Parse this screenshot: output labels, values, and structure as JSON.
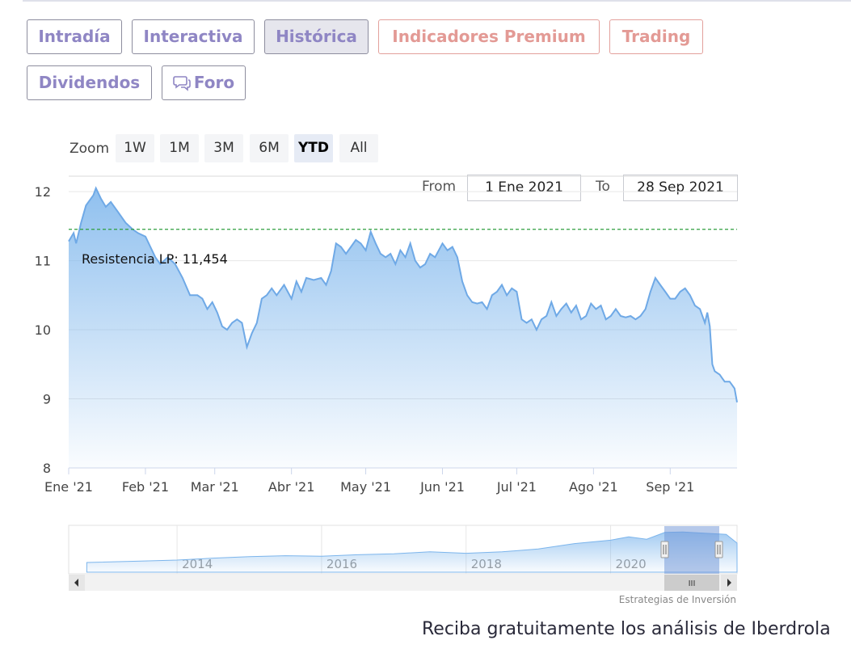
{
  "tabs": [
    {
      "label": "Intradía",
      "active": false,
      "premium": false
    },
    {
      "label": "Interactiva",
      "active": false,
      "premium": false
    },
    {
      "label": "Histórica",
      "active": true,
      "premium": false
    },
    {
      "label": "Indicadores Premium",
      "active": false,
      "premium": true
    },
    {
      "label": "Trading",
      "active": false,
      "premium": true
    },
    {
      "label": "Dividendos",
      "active": false,
      "premium": false
    },
    {
      "label": "Foro",
      "icon": "chat-bubbles-icon",
      "active": false,
      "premium": false
    }
  ],
  "zoom": {
    "label": "Zoom",
    "buttons": [
      "1W",
      "1M",
      "3M",
      "6M",
      "YTD",
      "All"
    ],
    "selected": "YTD"
  },
  "range": {
    "from_label": "From",
    "from_value": "1 Ene 2021",
    "to_label": "To",
    "to_value": "28 Sep 2021"
  },
  "chart_data": {
    "type": "area",
    "x_ticks": [
      "Ene '21",
      "Feb '21",
      "Mar '21",
      "Abr '21",
      "May '21",
      "Jun '21",
      "Jul '21",
      "Ago '21",
      "Sep '21"
    ],
    "y_ticks": [
      8,
      9,
      10,
      11,
      12
    ],
    "ylim": [
      8,
      12.2
    ],
    "xlim": [
      "2021-01-01",
      "2021-09-28"
    ],
    "grid": true,
    "resistance": {
      "label": "Resistencia LP: 11,454",
      "value": 11.454,
      "color": "#2e9e3e"
    },
    "colors": {
      "line": "#7cb5ec",
      "fill_top": "#7cb5ec",
      "fill_bottom": "#ffffff"
    },
    "series": [
      {
        "points": [
          [
            "2021-01-01",
            11.28
          ],
          [
            "2021-01-03",
            11.4
          ],
          [
            "2021-01-04",
            11.25
          ],
          [
            "2021-01-06",
            11.55
          ],
          [
            "2021-01-08",
            11.8
          ],
          [
            "2021-01-11",
            11.95
          ],
          [
            "2021-01-12",
            12.05
          ],
          [
            "2021-01-14",
            11.9
          ],
          [
            "2021-01-16",
            11.78
          ],
          [
            "2021-01-18",
            11.85
          ],
          [
            "2021-01-21",
            11.7
          ],
          [
            "2021-01-24",
            11.55
          ],
          [
            "2021-01-27",
            11.45
          ],
          [
            "2021-01-29",
            11.4
          ],
          [
            "2021-02-01",
            11.35
          ],
          [
            "2021-02-03",
            11.2
          ],
          [
            "2021-02-05",
            11.05
          ],
          [
            "2021-02-07",
            10.95
          ],
          [
            "2021-02-10",
            11.05
          ],
          [
            "2021-02-13",
            10.95
          ],
          [
            "2021-02-16",
            10.75
          ],
          [
            "2021-02-19",
            10.5
          ],
          [
            "2021-02-22",
            10.5
          ],
          [
            "2021-02-24",
            10.45
          ],
          [
            "2021-02-26",
            10.3
          ],
          [
            "2021-02-28",
            10.4
          ],
          [
            "2021-03-02",
            10.25
          ],
          [
            "2021-03-04",
            10.05
          ],
          [
            "2021-03-06",
            10.0
          ],
          [
            "2021-03-08",
            10.1
          ],
          [
            "2021-03-10",
            10.15
          ],
          [
            "2021-03-12",
            10.1
          ],
          [
            "2021-03-14",
            9.75
          ],
          [
            "2021-03-16",
            9.95
          ],
          [
            "2021-03-18",
            10.1
          ],
          [
            "2021-03-20",
            10.45
          ],
          [
            "2021-03-22",
            10.5
          ],
          [
            "2021-03-24",
            10.6
          ],
          [
            "2021-03-26",
            10.5
          ],
          [
            "2021-03-29",
            10.65
          ],
          [
            "2021-04-01",
            10.45
          ],
          [
            "2021-04-03",
            10.7
          ],
          [
            "2021-04-05",
            10.55
          ],
          [
            "2021-04-07",
            10.75
          ],
          [
            "2021-04-10",
            10.72
          ],
          [
            "2021-04-13",
            10.75
          ],
          [
            "2021-04-15",
            10.65
          ],
          [
            "2021-04-17",
            10.85
          ],
          [
            "2021-04-19",
            11.25
          ],
          [
            "2021-04-21",
            11.2
          ],
          [
            "2021-04-23",
            11.1
          ],
          [
            "2021-04-25",
            11.2
          ],
          [
            "2021-04-27",
            11.3
          ],
          [
            "2021-04-29",
            11.25
          ],
          [
            "2021-05-01",
            11.15
          ],
          [
            "2021-05-03",
            11.42
          ],
          [
            "2021-05-05",
            11.25
          ],
          [
            "2021-05-07",
            11.1
          ],
          [
            "2021-05-09",
            11.05
          ],
          [
            "2021-05-11",
            11.1
          ],
          [
            "2021-05-13",
            10.95
          ],
          [
            "2021-05-15",
            11.15
          ],
          [
            "2021-05-17",
            11.05
          ],
          [
            "2021-05-19",
            11.25
          ],
          [
            "2021-05-21",
            11.0
          ],
          [
            "2021-05-23",
            10.9
          ],
          [
            "2021-05-25",
            10.95
          ],
          [
            "2021-05-27",
            11.1
          ],
          [
            "2021-05-29",
            11.05
          ],
          [
            "2021-06-01",
            11.25
          ],
          [
            "2021-06-03",
            11.15
          ],
          [
            "2021-06-05",
            11.2
          ],
          [
            "2021-06-07",
            11.05
          ],
          [
            "2021-06-09",
            10.7
          ],
          [
            "2021-06-11",
            10.5
          ],
          [
            "2021-06-13",
            10.4
          ],
          [
            "2021-06-15",
            10.38
          ],
          [
            "2021-06-17",
            10.4
          ],
          [
            "2021-06-19",
            10.3
          ],
          [
            "2021-06-21",
            10.5
          ],
          [
            "2021-06-23",
            10.55
          ],
          [
            "2021-06-25",
            10.65
          ],
          [
            "2021-06-27",
            10.5
          ],
          [
            "2021-06-29",
            10.6
          ],
          [
            "2021-07-01",
            10.55
          ],
          [
            "2021-07-03",
            10.15
          ],
          [
            "2021-07-05",
            10.1
          ],
          [
            "2021-07-07",
            10.15
          ],
          [
            "2021-07-09",
            10.0
          ],
          [
            "2021-07-11",
            10.15
          ],
          [
            "2021-07-13",
            10.2
          ],
          [
            "2021-07-15",
            10.4
          ],
          [
            "2021-07-17",
            10.2
          ],
          [
            "2021-07-19",
            10.3
          ],
          [
            "2021-07-21",
            10.38
          ],
          [
            "2021-07-23",
            10.25
          ],
          [
            "2021-07-25",
            10.35
          ],
          [
            "2021-07-27",
            10.15
          ],
          [
            "2021-07-29",
            10.2
          ],
          [
            "2021-07-31",
            10.38
          ],
          [
            "2021-08-02",
            10.3
          ],
          [
            "2021-08-04",
            10.35
          ],
          [
            "2021-08-06",
            10.15
          ],
          [
            "2021-08-08",
            10.2
          ],
          [
            "2021-08-10",
            10.3
          ],
          [
            "2021-08-12",
            10.2
          ],
          [
            "2021-08-14",
            10.18
          ],
          [
            "2021-08-16",
            10.2
          ],
          [
            "2021-08-18",
            10.15
          ],
          [
            "2021-08-20",
            10.2
          ],
          [
            "2021-08-22",
            10.3
          ],
          [
            "2021-08-24",
            10.55
          ],
          [
            "2021-08-26",
            10.75
          ],
          [
            "2021-08-28",
            10.65
          ],
          [
            "2021-08-30",
            10.55
          ],
          [
            "2021-09-01",
            10.45
          ],
          [
            "2021-09-03",
            10.45
          ],
          [
            "2021-09-05",
            10.55
          ],
          [
            "2021-09-07",
            10.6
          ],
          [
            "2021-09-09",
            10.5
          ],
          [
            "2021-09-11",
            10.35
          ],
          [
            "2021-09-13",
            10.3
          ],
          [
            "2021-09-15",
            10.1
          ],
          [
            "2021-09-16",
            10.25
          ],
          [
            "2021-09-17",
            10.05
          ],
          [
            "2021-09-18",
            9.5
          ],
          [
            "2021-09-19",
            9.4
          ],
          [
            "2021-09-21",
            9.35
          ],
          [
            "2021-09-22",
            9.3
          ],
          [
            "2021-09-23",
            9.25
          ],
          [
            "2021-09-25",
            9.25
          ],
          [
            "2021-09-26",
            9.2
          ],
          [
            "2021-09-27",
            9.15
          ],
          [
            "2021-09-28",
            8.95
          ]
        ]
      }
    ]
  },
  "navigator": {
    "year_labels": [
      "2014",
      "2016",
      "2018",
      "2020"
    ],
    "handle_glyph": "III",
    "scroll_left_icon": "arrow-left-icon",
    "scroll_right_icon": "arrow-right-icon",
    "trend": [
      [
        "2012.75",
        5.0
      ],
      [
        "2013.5",
        5.3
      ],
      [
        "2014.0",
        5.5
      ],
      [
        "2014.5",
        5.9
      ],
      [
        "2015.0",
        6.2
      ],
      [
        "2015.5",
        6.4
      ],
      [
        "2016.0",
        6.3
      ],
      [
        "2016.5",
        6.6
      ],
      [
        "2017.0",
        6.8
      ],
      [
        "2017.5",
        7.2
      ],
      [
        "2018.0",
        6.9
      ],
      [
        "2018.5",
        7.2
      ],
      [
        "2019.0",
        7.8
      ],
      [
        "2019.5",
        8.9
      ],
      [
        "2020.0",
        9.6
      ],
      [
        "2020.25",
        10.3
      ],
      [
        "2020.5",
        9.8
      ],
      [
        "2020.75",
        11.2
      ],
      [
        "2021.0",
        11.3
      ],
      [
        "2021.35",
        11.0
      ],
      [
        "2021.6",
        10.8
      ],
      [
        "2021.75",
        9.0
      ]
    ]
  },
  "credit": "Estrategias de Inversión",
  "footer": "Reciba gratuitamente los análisis de Iberdrola"
}
